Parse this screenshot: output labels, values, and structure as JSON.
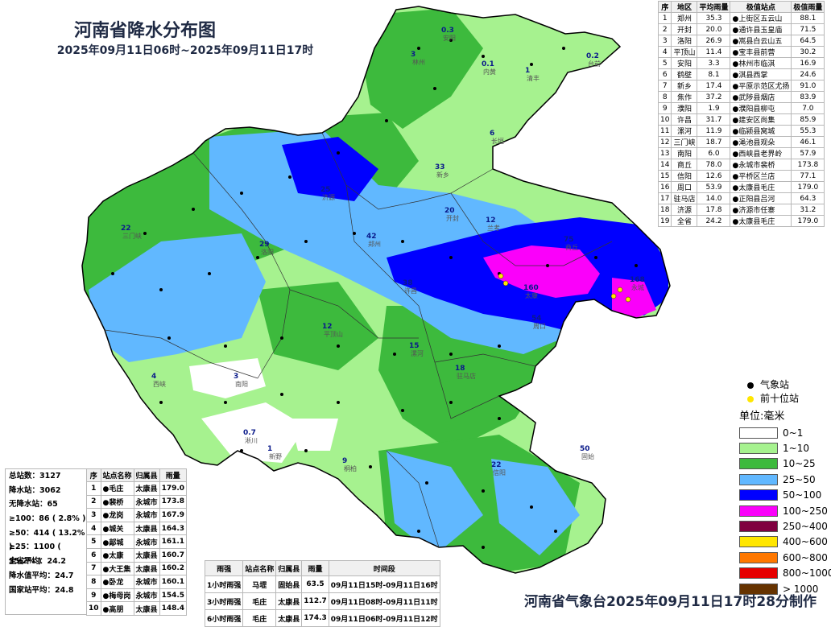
{
  "title": "河南省降水分布图",
  "subtitle": "2025年09月11日06时~2025年09月11日17时",
  "footer": "河南省气象台2025年09月11日17时28分制作",
  "city_table": {
    "headers": [
      "序",
      "地区",
      "平均雨量",
      "极值站点",
      "极值雨量"
    ],
    "rows": [
      [
        "1",
        "郑州",
        "35.3",
        "●上街区五云山",
        "88.1"
      ],
      [
        "2",
        "开封",
        "20.0",
        "●通许县玉皇庙",
        "71.5"
      ],
      [
        "3",
        "洛阳",
        "26.9",
        "●嵩县白云山五",
        "64.5"
      ],
      [
        "4",
        "平顶山",
        "11.4",
        "●宝丰县前营",
        "30.2"
      ],
      [
        "5",
        "安阳",
        "3.3",
        "●林州市临淇",
        "16.9"
      ],
      [
        "6",
        "鹤壁",
        "8.1",
        "●淇县西掌",
        "24.6"
      ],
      [
        "7",
        "新乡",
        "17.4",
        "●平原示范区尤扬",
        "91.0"
      ],
      [
        "8",
        "焦作",
        "37.2",
        "●武陟县烟店",
        "83.9"
      ],
      [
        "9",
        "濮阳",
        "1.9",
        "●濮阳县柳屯",
        "7.0"
      ],
      [
        "10",
        "许昌",
        "31.7",
        "●建安区尚集",
        "85.9"
      ],
      [
        "11",
        "漯河",
        "11.9",
        "●临颍县窝城",
        "55.3"
      ],
      [
        "12",
        "三门峡",
        "18.7",
        "●渑池县观朵",
        "46.1"
      ],
      [
        "13",
        "南阳",
        "6.0",
        "●西峡县老界岭",
        "57.9"
      ],
      [
        "14",
        "商丘",
        "78.0",
        "●永城市裴桥",
        "173.8"
      ],
      [
        "15",
        "信阳",
        "12.6",
        "●平桥区兰店",
        "77.1"
      ],
      [
        "16",
        "周口",
        "53.9",
        "●太康县毛庄",
        "179.0"
      ],
      [
        "17",
        "驻马店",
        "14.0",
        "●正阳县吕河",
        "64.3"
      ],
      [
        "18",
        "济源",
        "17.8",
        "●济源市任寨",
        "31.2"
      ],
      [
        "19",
        "全省",
        "24.2",
        "●太康县毛庄",
        "179.0"
      ]
    ]
  },
  "summary": [
    "总站数：3127",
    "降水站：3062",
    "无降水站：65",
    "≥100：86 ( 2.8% )",
    "≥50：414 ( 13.2% )",
    "≥25：1100 ( 35.2% )",
    "全省平均：24.2",
    "降水值平均：24.7",
    "国家站平均：24.8"
  ],
  "top10": {
    "headers": [
      "序",
      "站点名称",
      "归属县",
      "雨量"
    ],
    "rows": [
      [
        "1",
        "●毛庄",
        "太康县",
        "179.0"
      ],
      [
        "2",
        "●裴桥",
        "永城市",
        "173.8"
      ],
      [
        "3",
        "●龙岗",
        "永城市",
        "167.9"
      ],
      [
        "4",
        "●城关",
        "太康县",
        "164.3"
      ],
      [
        "5",
        "●鄗城",
        "永城市",
        "161.1"
      ],
      [
        "6",
        "●太康",
        "太康县",
        "160.7"
      ],
      [
        "7",
        "●大王集",
        "太康县",
        "160.2"
      ],
      [
        "8",
        "●卧龙",
        "永城市",
        "160.1"
      ],
      [
        "9",
        "●梅母岗",
        "永城市",
        "154.5"
      ],
      [
        "10",
        "●高朋",
        "太康县",
        "148.4"
      ]
    ]
  },
  "intense": {
    "headers": [
      "雨强",
      "站点名称",
      "归属县",
      "雨量",
      "时间段"
    ],
    "rows": [
      [
        "1小时雨强",
        "马堽",
        "固始县",
        "63.5",
        "09月11日15时-09月11日16时"
      ],
      [
        "3小时雨强",
        "毛庄",
        "太康县",
        "112.7",
        "09月11日08时-09月11日11时"
      ],
      [
        "6小时雨强",
        "毛庄",
        "太康县",
        "174.3",
        "09月11日06时-09月11日12时"
      ]
    ]
  },
  "legend": {
    "markers": [
      {
        "label": "气象站",
        "color": "#000000"
      },
      {
        "label": "前十位站",
        "color": "#ffe600"
      }
    ],
    "unit": "单位:毫米",
    "classes": [
      {
        "label": "0~1",
        "color": "#ffffff"
      },
      {
        "label": "1~10",
        "color": "#a6f28f"
      },
      {
        "label": "10~25",
        "color": "#3dba3d"
      },
      {
        "label": "25~50",
        "color": "#61b8ff"
      },
      {
        "label": "50~100",
        "color": "#0000ff"
      },
      {
        "label": "100~250",
        "color": "#fa00fa"
      },
      {
        "label": "250~400",
        "color": "#800040"
      },
      {
        "label": "400~600",
        "color": "#ffe600"
      },
      {
        "label": "600~800",
        "color": "#ff7800"
      },
      {
        "label": "800~1000",
        "color": "#e60000"
      },
      {
        "label": "> 1000",
        "color": "#663300"
      }
    ]
  },
  "map_labels": [
    {
      "text": "林州",
      "v": "3"
    },
    {
      "text": "安阳",
      "v": "0.3"
    },
    {
      "text": "内黄",
      "v": "0.1"
    },
    {
      "text": "清丰",
      "v": "1"
    },
    {
      "text": "台前",
      "v": "0.2"
    },
    {
      "text": "长垣",
      "v": "6"
    },
    {
      "text": "新乡",
      "v": "33"
    },
    {
      "text": "济源",
      "v": "25"
    },
    {
      "text": "郑州",
      "v": "42"
    },
    {
      "text": "开封",
      "v": "20"
    },
    {
      "text": "兰考",
      "v": "12"
    },
    {
      "text": "商丘",
      "v": "75"
    },
    {
      "text": "永城",
      "v": "168"
    },
    {
      "text": "洛阳",
      "v": "29"
    },
    {
      "text": "三门峡",
      "v": "22"
    },
    {
      "text": "许昌",
      "v": "38"
    },
    {
      "text": "周口",
      "v": "54"
    },
    {
      "text": "太康",
      "v": "160"
    },
    {
      "text": "平顶山",
      "v": "12"
    },
    {
      "text": "漯河",
      "v": "15"
    },
    {
      "text": "南阳",
      "v": "3"
    },
    {
      "text": "驻马店",
      "v": "18"
    },
    {
      "text": "信阳",
      "v": "22"
    },
    {
      "text": "固始",
      "v": "50"
    },
    {
      "text": "西峡",
      "v": "4"
    },
    {
      "text": "淅川",
      "v": "0.7"
    },
    {
      "text": "新野",
      "v": "1"
    },
    {
      "text": "桐柏",
      "v": "9"
    }
  ]
}
